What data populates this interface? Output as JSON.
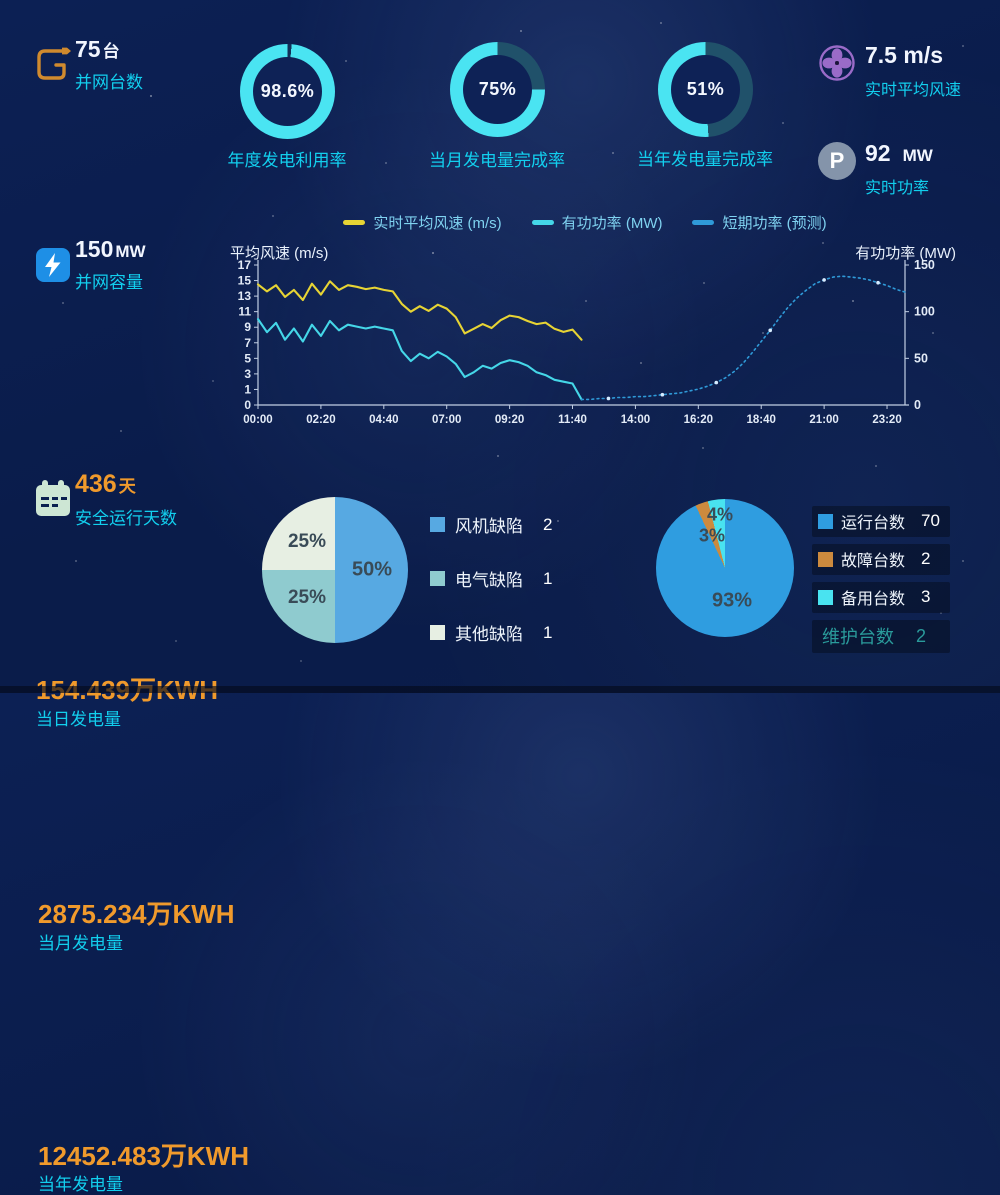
{
  "colors": {
    "cyan_label": "#12cfee",
    "orange_value": "#f09a2c",
    "donut_progress": "#4ae4f2",
    "axis": "#c2cfe4",
    "tick_text": "#e3ebf7"
  },
  "stats_left": [
    {
      "value": "75",
      "unit": "台",
      "label": "并网台数",
      "icon": "charging-plug-icon"
    },
    {
      "value": "150",
      "unit": "MW",
      "label": "并网容量",
      "icon": "lightning-icon"
    },
    {
      "value": "436",
      "unit": "天",
      "label": "安全运行天数",
      "icon": "calendar-icon"
    },
    {
      "value": "154.439万KWH",
      "label": "当日发电量"
    },
    {
      "value": "2875.234万KWH",
      "label": "当月发电量"
    },
    {
      "value": "12452.483万KWH",
      "label": "当年发电量"
    }
  ],
  "donuts": [
    {
      "percent": 98.6,
      "display": "98.6%",
      "label": "年度发电利用率",
      "rest": "#123058"
    },
    {
      "percent": 75,
      "display": "75%",
      "label": "当月发电量完成率",
      "rest": "#20516a"
    },
    {
      "percent": 51,
      "display": "51%",
      "label": "当年发电量完成率",
      "rest": "#20516a"
    }
  ],
  "stats_right": [
    {
      "value": "7.5 m/s",
      "label": "实时平均风速",
      "icon": "fan-icon"
    },
    {
      "value": "92",
      "unit": "MW",
      "label": "实时功率",
      "icon": "power-p-icon"
    }
  ],
  "chart_data": [
    {
      "type": "line",
      "left_axis": {
        "title": "平均风速 (m/s)",
        "ticks": [
          0,
          1,
          3,
          5,
          7,
          9,
          11,
          13,
          15,
          17
        ]
      },
      "right_axis": {
        "title": "有功功率 (MW)",
        "ticks": [
          0,
          50,
          100,
          150
        ],
        "max": 150
      },
      "x_ticks": [
        "00:00",
        "02:20",
        "04:40",
        "07:00",
        "09:20",
        "11:40",
        "14:00",
        "16:20",
        "18:40",
        "21:00",
        "23:20"
      ],
      "x_total_minutes": 1440,
      "grid": false,
      "legend_position": "top",
      "series": [
        {
          "name": "实时平均风速 (m/s)",
          "color": "#e7d434",
          "axis": "left",
          "style": "solid",
          "start_min": 0,
          "step_min": 20,
          "values": [
            14.5,
            13.6,
            14.4,
            12.9,
            13.8,
            12.5,
            14.6,
            13.2,
            14.9,
            13.8,
            14.4,
            14.2,
            13.9,
            14.1,
            13.8,
            13.6,
            12.0,
            11.0,
            11.7,
            11.1,
            11.9,
            11.4,
            10.3,
            8.2,
            8.8,
            9.4,
            8.9,
            9.9,
            10.5,
            10.3,
            9.8,
            9.4,
            9.6,
            8.8,
            8.4,
            8.7,
            7.4
          ]
        },
        {
          "name": "有功功率 (MW)",
          "color": "#45d7e8",
          "axis": "right",
          "style": "solid",
          "start_min": 0,
          "step_min": 20,
          "values": [
            92,
            78,
            88,
            70,
            82,
            68,
            86,
            74,
            90,
            80,
            86,
            84,
            82,
            84,
            82,
            80,
            58,
            47,
            55,
            50,
            57,
            52,
            44,
            30,
            35,
            42,
            39,
            45,
            48,
            46,
            42,
            35,
            32,
            27,
            25,
            23,
            6
          ]
        },
        {
          "name": "短期功率 (预测)",
          "color": "#2f9ad8",
          "axis": "right",
          "style": "dotted",
          "start_min": 720,
          "step_min": 20,
          "marker_every": 6,
          "values": [
            6,
            6,
            7,
            7,
            8,
            8,
            9,
            9,
            10,
            11,
            12,
            13,
            15,
            17,
            20,
            24,
            29,
            36,
            45,
            56,
            68,
            80,
            93,
            105,
            115,
            123,
            130,
            134,
            137,
            138,
            137,
            136,
            134,
            131,
            128,
            124,
            121
          ]
        }
      ]
    },
    {
      "type": "pie",
      "slices": [
        {
          "label": "风机缺陷",
          "count": 2,
          "percent": 50,
          "display": "50%",
          "color": "#57a9e2",
          "label_r": 0.5
        },
        {
          "label": "电气缺陷",
          "count": 1,
          "percent": 25,
          "display": "25%",
          "color": "#8fcbcf",
          "label_r": 0.55
        },
        {
          "label": "其他缺陷",
          "count": 1,
          "percent": 25,
          "display": "25%",
          "color": "#e7efe3",
          "label_r": 0.55
        }
      ]
    },
    {
      "type": "pie",
      "slices": [
        {
          "label": "运行台数",
          "count": 70,
          "percent": 93,
          "display": "93%",
          "color": "#2f9de0",
          "label_r": 0.5
        },
        {
          "label": "故障台数",
          "count": 2,
          "percent": 3,
          "display": "3%",
          "color": "#cc8a3e",
          "label_r": 0.55
        },
        {
          "label": "备用台数",
          "count": 3,
          "percent": 4,
          "display": "4%",
          "color": "#49e3f0",
          "label_r": 0.78
        }
      ],
      "extra_legend": [
        {
          "label": "维护台数",
          "count": 2
        }
      ]
    }
  ]
}
